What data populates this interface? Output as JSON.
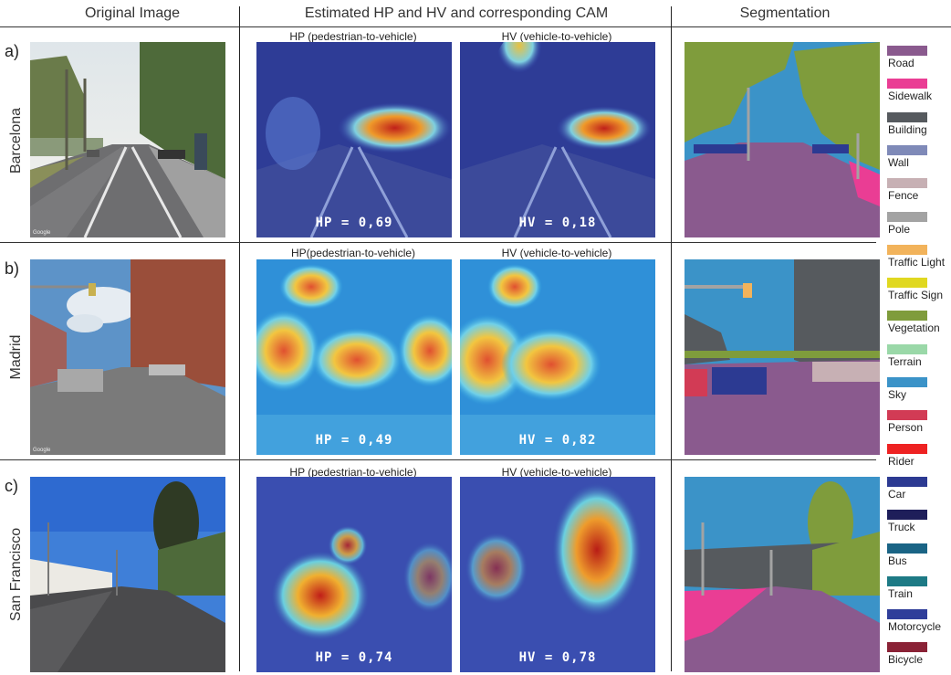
{
  "headers": {
    "original": "Original Image",
    "estimated": "Estimated HP and HV and corresponding CAM",
    "segmentation": "Segmentation"
  },
  "rows": [
    {
      "label": "a)",
      "city": "Barcelona",
      "hp_title": "HP (pedestrian-to-vehicle)",
      "hv_title": "HV (vehicle-to-vehicle)",
      "hp_value": "HP = 0,69",
      "hv_value": "HV = 0,18"
    },
    {
      "label": "b)",
      "city": "Madrid",
      "hp_title": "HP(pedestrian-to-vehicle)",
      "hv_title": "HV (vehicle-to-vehicle)",
      "hp_value": "HP = 0,49",
      "hv_value": "HV = 0,82"
    },
    {
      "label": "c)",
      "city": "San Francisco",
      "hp_title": "HP (pedestrian-to-vehicle)",
      "hv_title": "HV (vehicle-to-vehicle)",
      "hp_value": "HP = 0,74",
      "hv_value": "HV = 0,78"
    }
  ],
  "watermark": "Google",
  "legend": [
    {
      "label": "Road",
      "color": "#8a5a8e"
    },
    {
      "label": "Sidewalk",
      "color": "#ea3d94"
    },
    {
      "label": "Building",
      "color": "#565a5e"
    },
    {
      "label": "Wall",
      "color": "#7f8ab8"
    },
    {
      "label": "Fence",
      "color": "#c7b0b4"
    },
    {
      "label": "Pole",
      "color": "#a3a3a3"
    },
    {
      "label": "Traffic Light",
      "color": "#f2b35b"
    },
    {
      "label": "Traffic Sign",
      "color": "#e0d820"
    },
    {
      "label": "Vegetation",
      "color": "#7f9c3c"
    },
    {
      "label": "Terrain",
      "color": "#9ad8a8"
    },
    {
      "label": "Sky",
      "color": "#3b93c8"
    },
    {
      "label": "Person",
      "color": "#d23b55"
    },
    {
      "label": "Rider",
      "color": "#ee2222"
    },
    {
      "label": "Car",
      "color": "#2c3a92"
    },
    {
      "label": "Truck",
      "color": "#1e1e5a"
    },
    {
      "label": "Bus",
      "color": "#1a6485"
    },
    {
      "label": "Train",
      "color": "#1d7a85"
    },
    {
      "label": "Motorcycle",
      "color": "#2f3e9a"
    },
    {
      "label": "Bicycle",
      "color": "#8a2236"
    }
  ]
}
